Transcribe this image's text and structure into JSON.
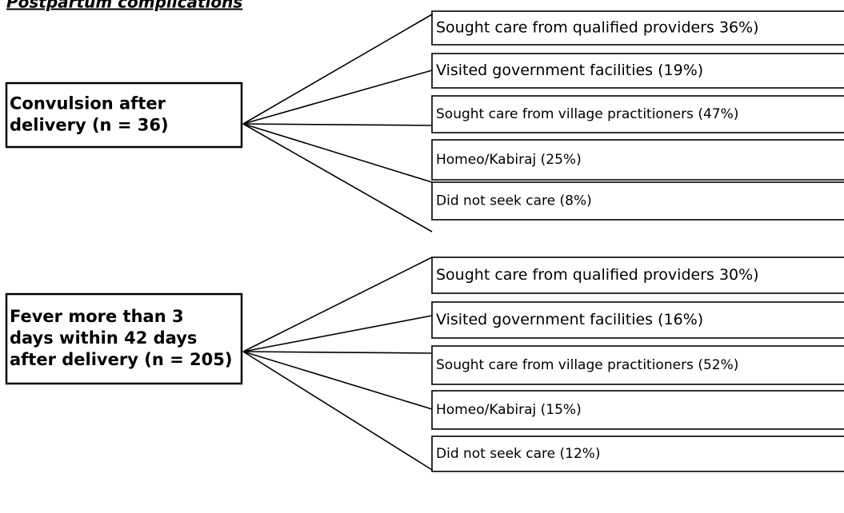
{
  "title": "Postpartum complications",
  "groups": [
    {
      "source": [
        "Convulsion after",
        "delivery (n = 36)"
      ],
      "outcomes": [
        "Sought care from qualified providers 36%)",
        "Visited government facilities  (19%)",
        "Sought care from village practitioners  (47%)",
        "Homeo/Kabiraj  (25%)",
        "Did not seek care (8%)"
      ]
    },
    {
      "source": [
        "Fever more than 3",
        "days within 42 days",
        "after delivery (n = 205)"
      ],
      "outcomes": [
        "Sought care from qualified providers 30%)",
        "Visited government facilities  (16%)",
        "Sought care from village practitioners  (52%)",
        "Homeo/Kabiraj  (15%)",
        "Did not seek care (12%)"
      ]
    }
  ]
}
